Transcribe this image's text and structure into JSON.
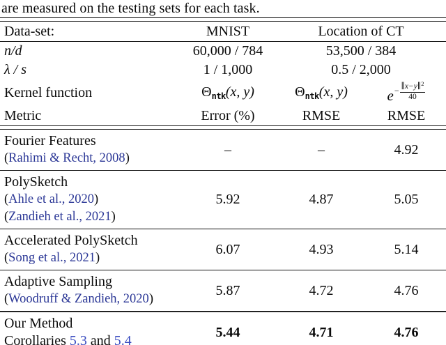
{
  "caption": "are measured on the testing sets for each task.",
  "colors": {
    "citation_blue": "#2b3796",
    "reference_blue": "#3a4cc0",
    "text": "#0b0b0b"
  },
  "header": {
    "dataset_label": "Data-set:",
    "dataset_mnist": "MNIST",
    "dataset_ct": "Location of CT",
    "nd_label": "n/d",
    "nd_mnist": "60,000 / 784",
    "nd_ct": "53,500 / 384",
    "lambda_label": "λ / s",
    "lambda_mnist": "1 / 1,000",
    "lambda_ct": "0.5 / 2,000",
    "kernel_label": "Kernel function",
    "kernel_ntk": {
      "symbol": "Θ",
      "sub": "ntk",
      "args": "(x, y)"
    },
    "kernel_gaussian": {
      "base": "e",
      "minus": "−",
      "numerator": "∥x−y∥",
      "num_exponent": "2",
      "denominator": "40"
    },
    "metric_label": "Metric",
    "metrics": [
      "Error (%)",
      "RMSE",
      "RMSE"
    ]
  },
  "rows": [
    {
      "name": "Fourier Features",
      "citations": [
        {
          "open": "(",
          "label": "Rahimi & Recht, 2008",
          "close": ")"
        }
      ],
      "values": [
        "–",
        "–",
        "4.92"
      ]
    },
    {
      "name": "PolySketch",
      "citations": [
        {
          "open": "(",
          "label": "Ahle et al., 2020",
          "close": ")"
        },
        {
          "open": "(",
          "label": "Zandieh et al., 2021",
          "close": ")"
        }
      ],
      "values": [
        "5.92",
        "4.87",
        "5.05"
      ]
    },
    {
      "name": "Accelerated PolySketch",
      "citations": [
        {
          "open": "(",
          "label": "Song et al., 2021",
          "close": ")"
        }
      ],
      "values": [
        "6.07",
        "4.93",
        "5.14"
      ]
    },
    {
      "name": "Adaptive Sampling",
      "citations": [
        {
          "open": "(",
          "label": "Woodruff & Zandieh, 2020",
          "close": ")"
        }
      ],
      "values": [
        "5.87",
        "4.72",
        "4.76"
      ]
    },
    {
      "name": "Our Method",
      "corollaries": {
        "prefix": "Corollaries ",
        "link1": "5.3",
        "mid": " and ",
        "link2": "5.4"
      },
      "values": [
        "5.44",
        "4.71",
        "4.76"
      ]
    }
  ]
}
